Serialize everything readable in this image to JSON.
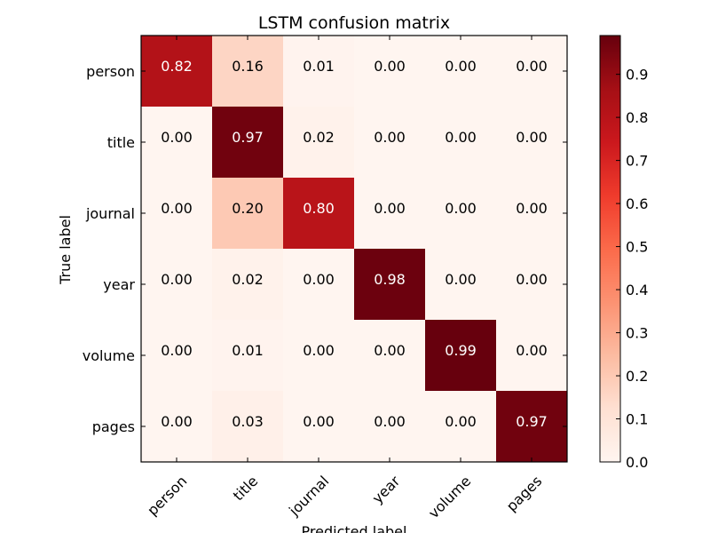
{
  "chart_data": {
    "type": "heatmap",
    "title": "LSTM confusion matrix",
    "xlabel": "Predicted label",
    "ylabel": "True label",
    "x_categories": [
      "person",
      "title",
      "journal",
      "year",
      "volume",
      "pages"
    ],
    "y_categories": [
      "person",
      "title",
      "journal",
      "year",
      "volume",
      "pages"
    ],
    "values": [
      [
        0.82,
        0.16,
        0.01,
        0.0,
        0.0,
        0.0
      ],
      [
        0.0,
        0.97,
        0.02,
        0.0,
        0.0,
        0.0
      ],
      [
        0.0,
        0.2,
        0.8,
        0.0,
        0.0,
        0.0
      ],
      [
        0.0,
        0.02,
        0.0,
        0.98,
        0.0,
        0.0
      ],
      [
        0.0,
        0.01,
        0.0,
        0.0,
        0.99,
        0.0
      ],
      [
        0.0,
        0.03,
        0.0,
        0.0,
        0.0,
        0.97
      ]
    ],
    "colormap": "Reds",
    "color_range": [
      0.0,
      0.99
    ],
    "colorbar_ticks": [
      "0.0",
      "0.1",
      "0.2",
      "0.3",
      "0.4",
      "0.5",
      "0.6",
      "0.7",
      "0.8",
      "0.9"
    ],
    "grid": false
  }
}
